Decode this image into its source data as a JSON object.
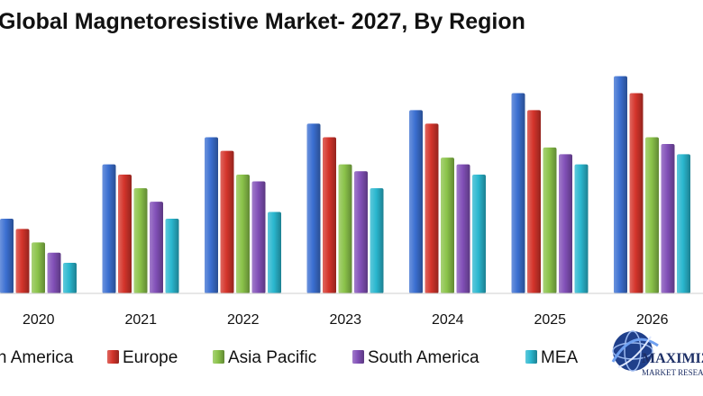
{
  "chart_data": {
    "type": "bar",
    "title": "Global Magnetoresistive Market- 2027, By Region",
    "xlabel": "",
    "ylabel": "",
    "categories": [
      "2020",
      "2021",
      "2022",
      "2023",
      "2024",
      "2025",
      "2026"
    ],
    "series": [
      {
        "name": "North America",
        "color": "#3b6fd1",
        "values": [
          22,
          38,
          46,
          50,
          54,
          59,
          64
        ]
      },
      {
        "name": "Europe",
        "color": "#d4342b",
        "values": [
          19,
          35,
          42,
          46,
          50,
          54,
          59
        ]
      },
      {
        "name": "Asia Pacific",
        "color": "#8bc34a",
        "values": [
          15,
          31,
          35,
          38,
          40,
          43,
          46
        ]
      },
      {
        "name": "South America",
        "color": "#8250b8",
        "values": [
          12,
          27,
          33,
          36,
          38,
          41,
          44
        ]
      },
      {
        "name": "MEA",
        "color": "#2ab7cf",
        "values": [
          9,
          22,
          24,
          31,
          35,
          38,
          41
        ]
      }
    ],
    "ylim": [
      0,
      70
    ],
    "grid": false,
    "legend": "bottom"
  },
  "logo": {
    "text_line1": "MAXIMIZE",
    "text_line2": "MARKET RESEARCH"
  }
}
